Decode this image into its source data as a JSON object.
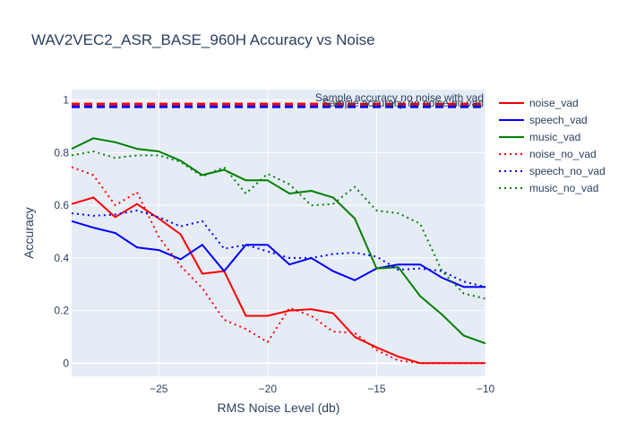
{
  "chart_data": {
    "type": "line",
    "title": "WAV2VEC2_ASR_BASE_960H Accuracy vs Noise",
    "xlabel": "RMS Noise Level (db)",
    "ylabel": "Accuracy",
    "xlim": [
      -29,
      -10
    ],
    "ylim": [
      -0.05,
      1.04
    ],
    "xticks": [
      -25,
      -20,
      -15,
      -10
    ],
    "yticks": [
      0,
      0.2,
      0.4,
      0.6,
      0.8,
      1
    ],
    "grid": true,
    "legend_position": "right",
    "x": [
      -29,
      -28,
      -27,
      -26,
      -25,
      -24,
      -23,
      -22,
      -21,
      -20,
      -19,
      -18,
      -17,
      -16,
      -15,
      -14,
      -13,
      -12,
      -11,
      -10
    ],
    "series": [
      {
        "name": "noise_vad",
        "color": "#ff0000",
        "dash": "solid",
        "values": [
          0.605,
          0.63,
          0.555,
          0.605,
          0.55,
          0.49,
          0.34,
          0.35,
          0.18,
          0.18,
          0.2,
          0.205,
          0.19,
          0.1,
          0.06,
          0.025,
          0.0,
          0.0,
          0.0,
          0.0
        ]
      },
      {
        "name": "speech_vad",
        "color": "#0000ff",
        "dash": "solid",
        "values": [
          0.54,
          0.515,
          0.495,
          0.44,
          0.43,
          0.395,
          0.45,
          0.35,
          0.45,
          0.45,
          0.375,
          0.4,
          0.35,
          0.315,
          0.36,
          0.375,
          0.375,
          0.325,
          0.29,
          0.29
        ]
      },
      {
        "name": "music_vad",
        "color": "#008000",
        "dash": "solid",
        "values": [
          0.815,
          0.855,
          0.84,
          0.815,
          0.805,
          0.77,
          0.715,
          0.735,
          0.695,
          0.695,
          0.645,
          0.655,
          0.63,
          0.55,
          0.36,
          0.365,
          0.255,
          0.185,
          0.105,
          0.075
        ]
      },
      {
        "name": "noise_no_vad",
        "color": "#ff0000",
        "dash": "dot",
        "values": [
          0.745,
          0.715,
          0.6,
          0.65,
          0.48,
          0.37,
          0.285,
          0.165,
          0.13,
          0.08,
          0.21,
          0.18,
          0.12,
          0.115,
          0.05,
          0.01,
          0.0,
          0.0,
          0.0,
          0.0
        ]
      },
      {
        "name": "speech_no_vad",
        "color": "#0000ff",
        "dash": "dot",
        "values": [
          0.57,
          0.56,
          0.565,
          0.58,
          0.555,
          0.52,
          0.54,
          0.435,
          0.45,
          0.425,
          0.4,
          0.4,
          0.415,
          0.42,
          0.405,
          0.355,
          0.36,
          0.35,
          0.31,
          0.29
        ]
      },
      {
        "name": "music_no_vad",
        "color": "#008000",
        "dash": "dot",
        "values": [
          0.79,
          0.805,
          0.78,
          0.79,
          0.79,
          0.765,
          0.71,
          0.745,
          0.645,
          0.72,
          0.68,
          0.6,
          0.605,
          0.67,
          0.58,
          0.57,
          0.53,
          0.35,
          0.265,
          0.245
        ]
      }
    ],
    "reference_lines": [
      {
        "label": "Sample accuracy no noise with vad",
        "value": 0.985,
        "color": "#ff0000",
        "dash": "dash"
      },
      {
        "label": "Sample accuracy no noise no vad",
        "value": 0.975,
        "color": "#0000ff",
        "dash": "dash"
      }
    ]
  }
}
